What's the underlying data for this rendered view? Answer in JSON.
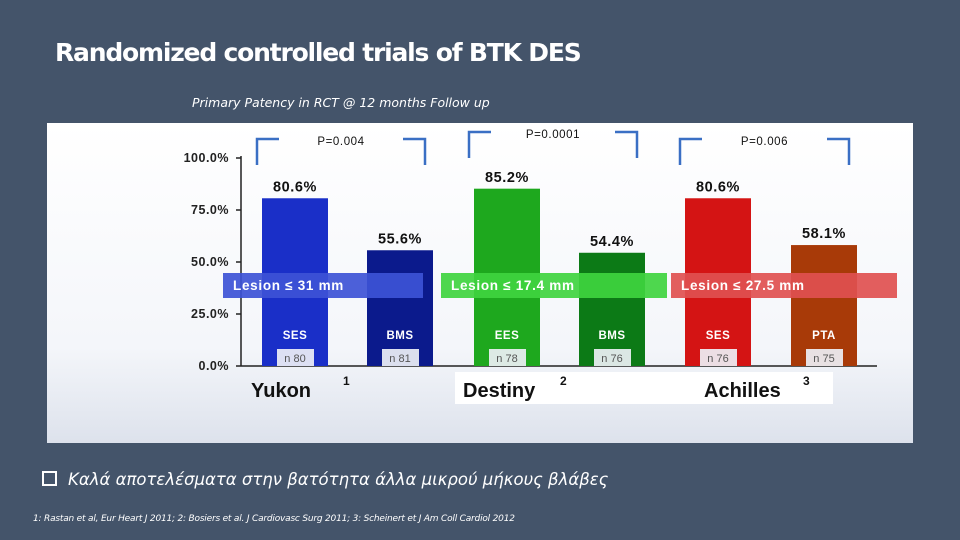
{
  "slide": {
    "title": "Randomized controlled trials of BTK DES",
    "subtitle": "Primary Patency in RCT @ 12 months Follow up",
    "bullet": "Καλά αποτελέσματα στην βατότητα άλλα μικρού μήκους βλάβες",
    "footnote": "1: Rastan et al, Eur Heart J 2011;  2: Bosiers et al. J Cardiovasc Surg 2011;  3: Scheinert et J Am Coll Cardiol 2012"
  },
  "chart_data": {
    "type": "bar",
    "ylim": [
      0,
      100
    ],
    "yticks": [
      0,
      25,
      50,
      75,
      100
    ],
    "ytick_labels": [
      "0.0%",
      "25.0%",
      "50.0%",
      "75.0%",
      "100.0%"
    ],
    "bars": [
      {
        "group": "SES",
        "n": "n  80",
        "value": 80.6,
        "label": "80.6%",
        "color": "#1a2fc8"
      },
      {
        "group": "BMS",
        "n": "n  81",
        "value": 55.6,
        "label": "55.6%",
        "color": "#0b1a8c"
      },
      {
        "group": "EES",
        "n": "n  78",
        "value": 85.2,
        "label": "85.2%",
        "color": "#1ea81e"
      },
      {
        "group": "BMS",
        "n": "n  76",
        "value": 54.4,
        "label": "54.4%",
        "color": "#0c7a16"
      },
      {
        "group": "SES",
        "n": "n  76",
        "value": 80.6,
        "label": "80.6%",
        "color": "#d41414"
      },
      {
        "group": "PTA",
        "n": "n  75",
        "value": 58.1,
        "label": "58.1%",
        "color": "#a83a08"
      }
    ],
    "trials": [
      {
        "name": "Yukon",
        "ref": "1",
        "p_value": "P=0.004",
        "lesion": "Lesion ≤ 31 mm",
        "lesion_color": "#3d52d6",
        "lesion_text_color": "#ffffff"
      },
      {
        "name": "Destiny",
        "ref": "2",
        "p_value": "P=0.0001",
        "lesion": "Lesion ≤ 17.4 mm",
        "lesion_color": "#3fd43f",
        "lesion_text_color": "#ffffff"
      },
      {
        "name": "Achilles",
        "ref": "3",
        "p_value": "P=0.006",
        "lesion": "Lesion ≤ 27.5 mm",
        "lesion_color": "#e05050",
        "lesion_text_color": "#ffffff"
      }
    ]
  }
}
